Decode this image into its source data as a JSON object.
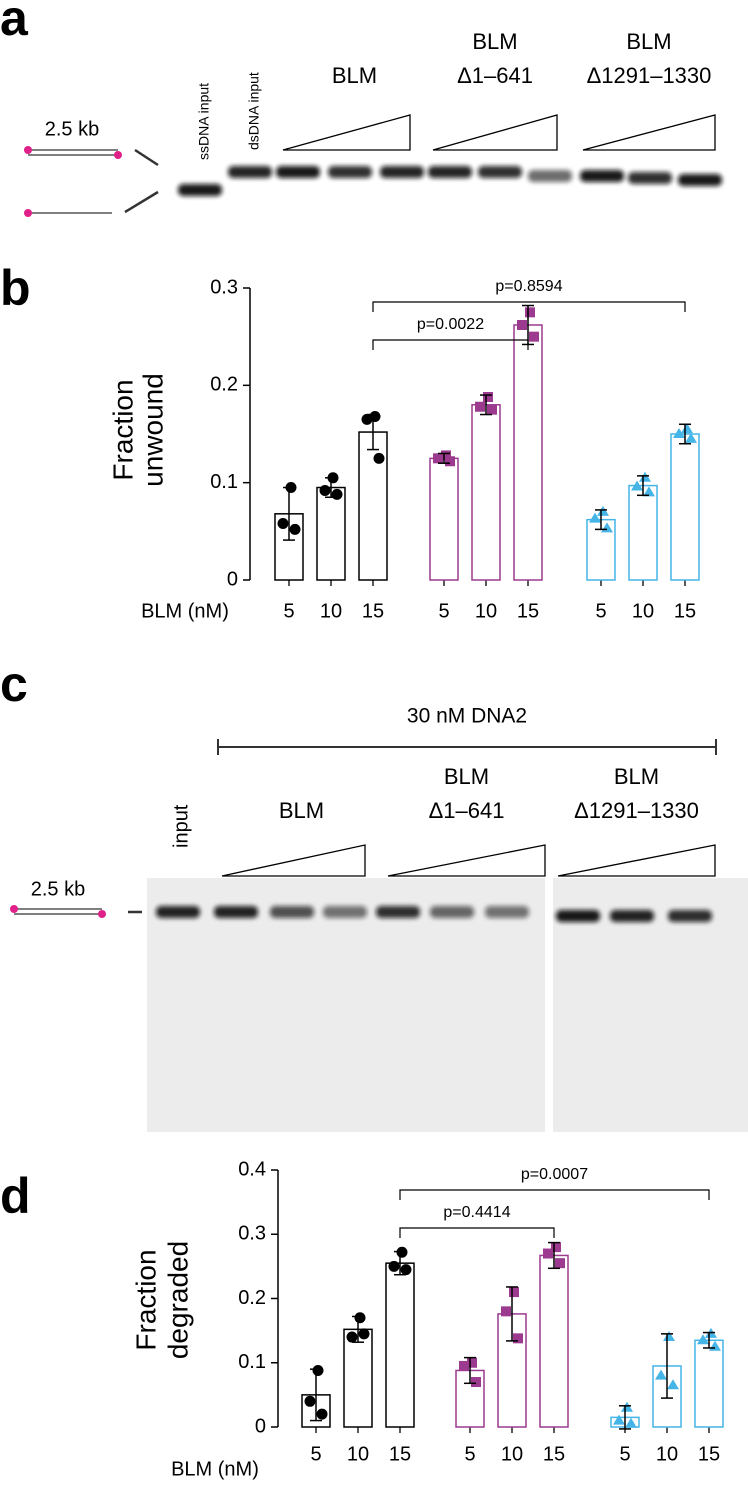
{
  "panels": [
    "a",
    "b",
    "c",
    "d"
  ],
  "gel_a": {
    "size_label": "2.5 kb",
    "lanes": [
      "ssDNA input",
      "dsDNA input"
    ],
    "groups": [
      [
        "BLM"
      ],
      [
        "BLM",
        "Δ1–641"
      ],
      [
        "BLM",
        "Δ1291–1330"
      ]
    ]
  },
  "gel_c": {
    "title": "30 nM DNA2",
    "size_label": "2.5 kb",
    "lanes": [
      "input"
    ],
    "groups": [
      [
        "BLM"
      ],
      [
        "BLM",
        "Δ1–641"
      ],
      [
        "BLM",
        "Δ1291–1330"
      ]
    ]
  },
  "chart_data": [
    {
      "type": "bar",
      "ylabel": [
        "Fraction",
        "unwound"
      ],
      "xlabel": "BLM (nM)",
      "categories": [
        "5",
        "10",
        "15"
      ],
      "ylim": [
        0,
        0.3
      ],
      "yticks": [
        0,
        0.1,
        0.2,
        0.3
      ],
      "comparisons": [
        "p=0.0022",
        "p=0.8594"
      ],
      "series": [
        {
          "color": "#000000",
          "values": [
            0.068,
            0.095,
            0.152
          ],
          "errors": [
            0.027,
            0.01,
            0.018
          ],
          "points": [
            [
              0.095,
              0.058,
              0.052
            ],
            [
              0.105,
              0.092,
              0.088
            ],
            [
              0.168,
              0.165,
              0.125
            ]
          ]
        },
        {
          "color": "#9b3a8f",
          "values": [
            0.125,
            0.18,
            0.262
          ],
          "errors": [
            0.005,
            0.01,
            0.02
          ],
          "points": [
            [
              0.128,
              0.125,
              0.122
            ],
            [
              0.188,
              0.178,
              0.175
            ],
            [
              0.275,
              0.262,
              0.25
            ]
          ]
        },
        {
          "color": "#45b4e6",
          "values": [
            0.062,
            0.097,
            0.15
          ],
          "errors": [
            0.01,
            0.01,
            0.01
          ],
          "points": [
            [
              0.07,
              0.063,
              0.053
            ],
            [
              0.105,
              0.096,
              0.09
            ],
            [
              0.155,
              0.15,
              0.145
            ]
          ]
        }
      ]
    },
    {
      "type": "bar",
      "ylabel": [
        "Fraction",
        "degraded"
      ],
      "xlabel": "BLM (nM)",
      "categories": [
        "5",
        "10",
        "15"
      ],
      "ylim": [
        0,
        0.4
      ],
      "yticks": [
        0,
        0.1,
        0.2,
        0.3,
        0.4
      ],
      "comparisons": [
        "p=0.4414",
        "p=0.0007"
      ],
      "series": [
        {
          "color": "#000000",
          "values": [
            0.05,
            0.152,
            0.255
          ],
          "errors": [
            0.04,
            0.02,
            0.018
          ],
          "points": [
            [
              0.088,
              0.04,
              0.02
            ],
            [
              0.17,
              0.14,
              0.145
            ],
            [
              0.272,
              0.25,
              0.245
            ]
          ]
        },
        {
          "color": "#9b3a8f",
          "values": [
            0.088,
            0.176,
            0.267
          ],
          "errors": [
            0.02,
            0.042,
            0.02
          ],
          "points": [
            [
              0.1,
              0.095,
              0.07
            ],
            [
              0.21,
              0.18,
              0.138
            ],
            [
              0.28,
              0.27,
              0.255
            ]
          ]
        },
        {
          "color": "#45b4e6",
          "values": [
            0.015,
            0.095,
            0.135
          ],
          "errors": [
            0.018,
            0.05,
            0.012
          ],
          "points": [
            [
              0.03,
              0.01,
              0.005
            ],
            [
              0.14,
              0.08,
              0.065
            ],
            [
              0.145,
              0.135,
              0.125
            ]
          ]
        }
      ]
    }
  ]
}
